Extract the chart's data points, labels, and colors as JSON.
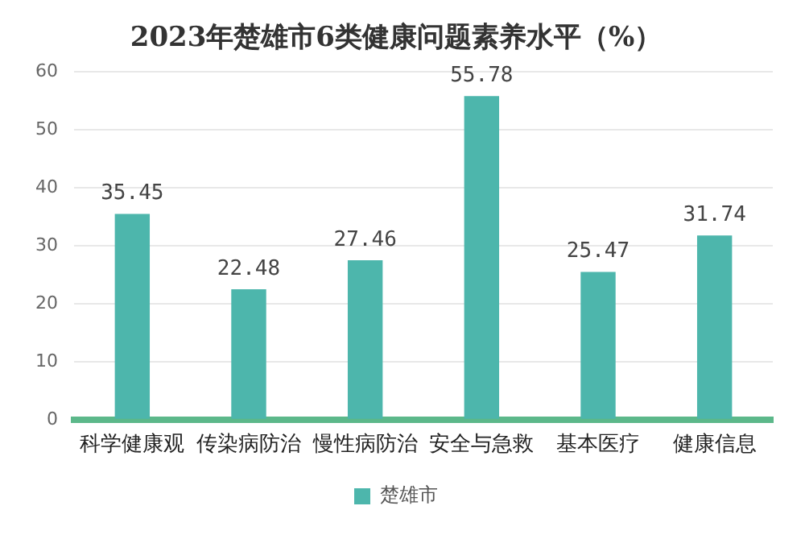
{
  "chart_data": {
    "type": "bar",
    "title": "2023年楚雄市6类健康问题素养水平（%）",
    "categories": [
      "科学健康观",
      "传染病防治",
      "慢性病防治",
      "安全与急救",
      "基本医疗",
      "健康信息"
    ],
    "series": [
      {
        "name": "楚雄市",
        "color": "#4db6ac",
        "values": [
          35.45,
          22.48,
          27.46,
          55.78,
          25.47,
          31.74
        ]
      }
    ],
    "ylim": [
      0,
      60
    ],
    "yticks": [
      0,
      10,
      20,
      30,
      40,
      50,
      60
    ],
    "grid": "y",
    "legend": "bottom",
    "data_labels": true
  }
}
